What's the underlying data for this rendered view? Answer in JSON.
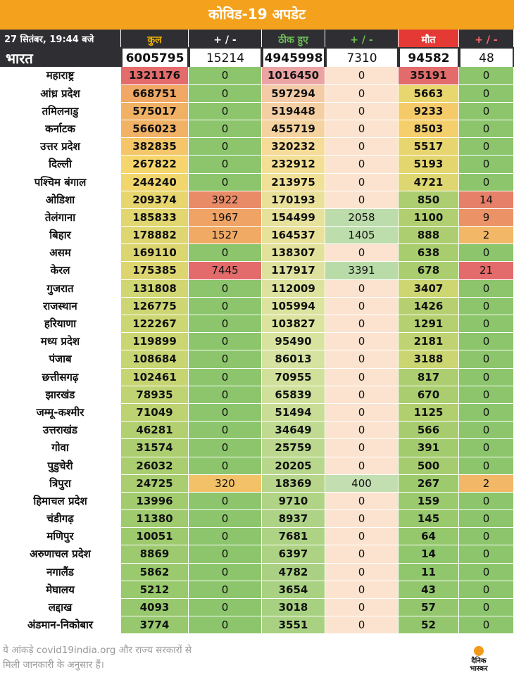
{
  "header": {
    "title": "कोविड-19 अपडेट"
  },
  "table": {
    "columns": [
      "27 सितंबर, 19:44 बजे",
      "कुल",
      "+ / -",
      "ठीक हुए",
      "+ / -",
      "मौत",
      "+ / -"
    ],
    "total_row": [
      "भारत",
      6005795,
      15214,
      4945998,
      7310,
      94582,
      48
    ],
    "rows": [
      [
        "महाराष्ट्र",
        1321176,
        0,
        1016450,
        0,
        35191,
        0
      ],
      [
        "आंध्र प्रदेश",
        668751,
        0,
        597294,
        0,
        5663,
        0
      ],
      [
        "तमिलनाडु",
        575017,
        0,
        519448,
        0,
        9233,
        0
      ],
      [
        "कर्नाटक",
        566023,
        0,
        455719,
        0,
        8503,
        0
      ],
      [
        "उत्तर प्रदेश",
        382835,
        0,
        320232,
        0,
        5517,
        0
      ],
      [
        "दिल्ली",
        267822,
        0,
        232912,
        0,
        5193,
        0
      ],
      [
        "पश्चिम बंगाल",
        244240,
        0,
        213975,
        0,
        4721,
        0
      ],
      [
        "ओडिशा",
        209374,
        3922,
        170193,
        0,
        850,
        14
      ],
      [
        "तेलंगाना",
        185833,
        1967,
        154499,
        2058,
        1100,
        9
      ],
      [
        "बिहार",
        178882,
        1527,
        164537,
        1405,
        888,
        2
      ],
      [
        "असम",
        169110,
        0,
        138307,
        0,
        638,
        0
      ],
      [
        "केरल",
        175385,
        7445,
        117917,
        3391,
        678,
        21
      ],
      [
        "गुजरात",
        131808,
        0,
        112009,
        0,
        3407,
        0
      ],
      [
        "राजस्थान",
        126775,
        0,
        105994,
        0,
        1426,
        0
      ],
      [
        "हरियाणा",
        122267,
        0,
        103827,
        0,
        1291,
        0
      ],
      [
        "मध्य प्रदेश",
        119899,
        0,
        95490,
        0,
        2181,
        0
      ],
      [
        "पंजाब",
        108684,
        0,
        86013,
        0,
        3188,
        0
      ],
      [
        "छत्तीसगढ़",
        102461,
        0,
        70955,
        0,
        817,
        0
      ],
      [
        "झारखंड",
        78935,
        0,
        65839,
        0,
        670,
        0
      ],
      [
        "जम्मू-कश्मीर",
        71049,
        0,
        51494,
        0,
        1125,
        0
      ],
      [
        "उत्तराखंड",
        46281,
        0,
        34649,
        0,
        566,
        0
      ],
      [
        "गोवा",
        31574,
        0,
        25759,
        0,
        391,
        0
      ],
      [
        "पुडुचेरी",
        26032,
        0,
        20205,
        0,
        500,
        0
      ],
      [
        "त्रिपुरा",
        24725,
        320,
        18369,
        400,
        267,
        2
      ],
      [
        "हिमाचल प्रदेश",
        13996,
        0,
        9710,
        0,
        159,
        0
      ],
      [
        "चंडीगढ़",
        11380,
        0,
        8937,
        0,
        145,
        0
      ],
      [
        "मणिपुर",
        10051,
        0,
        7681,
        0,
        64,
        0
      ],
      [
        "अरुणाचल प्रदेश",
        8869,
        0,
        6397,
        0,
        14,
        0
      ],
      [
        "नगालैंड",
        5862,
        0,
        4782,
        0,
        11,
        0
      ],
      [
        "मेघालय",
        5212,
        0,
        3654,
        0,
        43,
        0
      ],
      [
        "लद्दाख",
        4093,
        0,
        3018,
        0,
        57,
        0
      ],
      [
        "अंडमान-निकोबार",
        3774,
        0,
        3551,
        0,
        52,
        0
      ]
    ]
  },
  "footer": {
    "note_lines": [
      "ये आंकड़े covid19india.org और राज्य सरकारों से",
      "मिली जानकारी के अनुसार हैं।"
    ],
    "logo": [
      "दैनिक",
      "भास्कर"
    ]
  }
}
